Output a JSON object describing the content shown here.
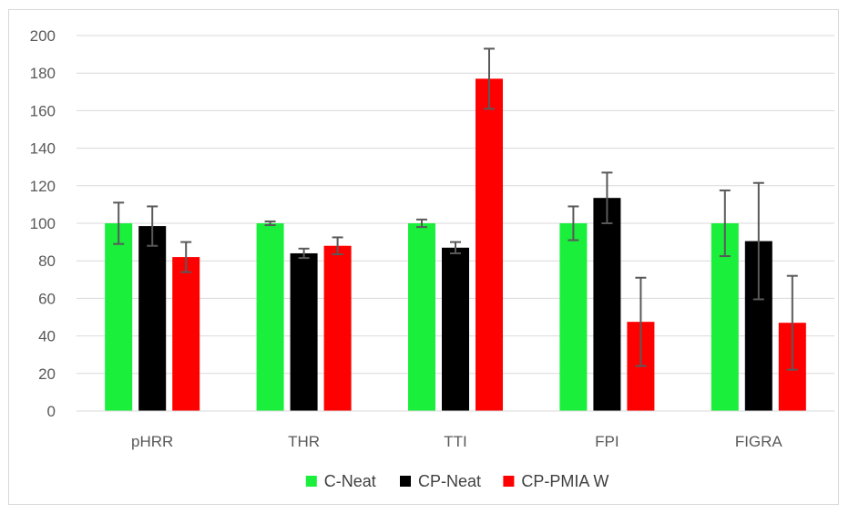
{
  "chart_data": {
    "type": "bar",
    "title": "",
    "xlabel": "",
    "ylabel": "",
    "categories": [
      "pHRR",
      "THR",
      "TTI",
      "FPI",
      "FIGRA"
    ],
    "ylim": [
      0,
      200
    ],
    "yticks": [
      0,
      20,
      40,
      60,
      80,
      100,
      120,
      140,
      160,
      180,
      200
    ],
    "grid": true,
    "legend_position": "bottom",
    "series": [
      {
        "name": "C-Neat",
        "color": "#1aef3c",
        "values": [
          100,
          100,
          100,
          100,
          100
        ],
        "errors": [
          11,
          1,
          2,
          9,
          17.5
        ]
      },
      {
        "name": "CP-Neat",
        "color": "#000000",
        "values": [
          98.5,
          84,
          87,
          113.5,
          90.5
        ],
        "errors": [
          10.5,
          2.5,
          3,
          13.5,
          31
        ]
      },
      {
        "name": "CP-PMIA W",
        "color": "#ff0000",
        "values": [
          82,
          88,
          177,
          47.5,
          47
        ],
        "errors": [
          8,
          4.5,
          16,
          23.5,
          25
        ]
      }
    ]
  }
}
